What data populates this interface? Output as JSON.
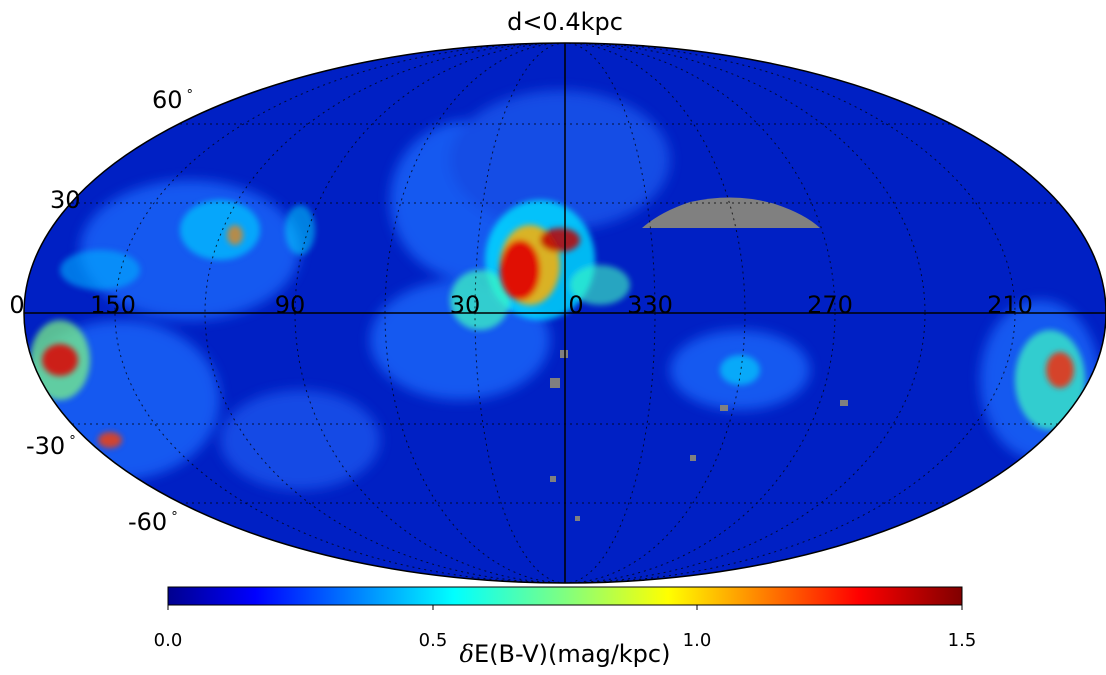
{
  "title": "d<0.4kpc",
  "projection": "mollweide",
  "longitude_labels": [
    "0",
    "150",
    "90",
    "30",
    "0",
    "330",
    "270",
    "210"
  ],
  "latitude_labels": [
    {
      "text": "60",
      "unit": "°"
    },
    {
      "text": "30",
      "unit": ""
    },
    {
      "text": "-30",
      "unit": "°"
    },
    {
      "text": "-60",
      "unit": "°"
    }
  ],
  "colorbar": {
    "label_symbol": "δ",
    "label_text": "E(B-V)(mag/kpc)",
    "ticks": [
      "0.0",
      "0.5",
      "1.0",
      "1.5"
    ],
    "min": 0.0,
    "max": 1.5,
    "colormap": "jet"
  },
  "colors": {
    "background_map": "#0022c0",
    "no_data": "#808080",
    "grid": "#000000"
  }
}
